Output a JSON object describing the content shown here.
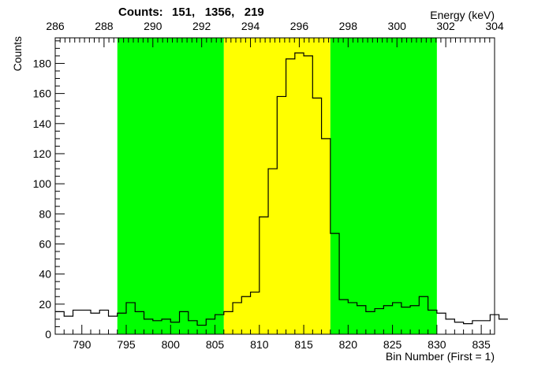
{
  "header": {
    "counts_label": "Counts:",
    "counts_values": "151,   1356,   219"
  },
  "chart_data": {
    "type": "histogram",
    "title": "",
    "xlabel": "Bin Number (First = 1)",
    "ylabel": "Counts",
    "top_axis_label": "Energy (keV)",
    "xlim": [
      787,
      836.5
    ],
    "ylim": [
      0,
      197
    ],
    "top_xlim": [
      286,
      304
    ],
    "x_ticks": [
      790,
      795,
      800,
      805,
      810,
      815,
      820,
      825,
      830,
      835
    ],
    "y_ticks": [
      0,
      20,
      40,
      60,
      80,
      100,
      120,
      140,
      160,
      180
    ],
    "top_ticks": [
      286,
      288,
      290,
      292,
      294,
      296,
      298,
      300,
      302,
      304
    ],
    "regions": [
      {
        "name": "background-left",
        "x_start": 794,
        "x_end": 806,
        "color": "#00ff00"
      },
      {
        "name": "peak",
        "x_start": 806,
        "x_end": 818,
        "color": "#ffff00"
      },
      {
        "name": "background-right",
        "x_start": 818,
        "x_end": 830,
        "color": "#00ff00"
      }
    ],
    "bin_start": 787,
    "bin_width": 1,
    "values": [
      15,
      12,
      16,
      16,
      14,
      16,
      12,
      14,
      21,
      15,
      10,
      9,
      10,
      8,
      15,
      9,
      6,
      10,
      13,
      15,
      21,
      25,
      28,
      78,
      110,
      158,
      183,
      187,
      185,
      157,
      130,
      67,
      23,
      21,
      19,
      15,
      17,
      19,
      21,
      18,
      19,
      25,
      16,
      14,
      10,
      8,
      7,
      9,
      9,
      13,
      10
    ]
  },
  "colors": {
    "background_region": "#00ff00",
    "peak_region": "#ffff00",
    "histogram_line": "#000000"
  }
}
